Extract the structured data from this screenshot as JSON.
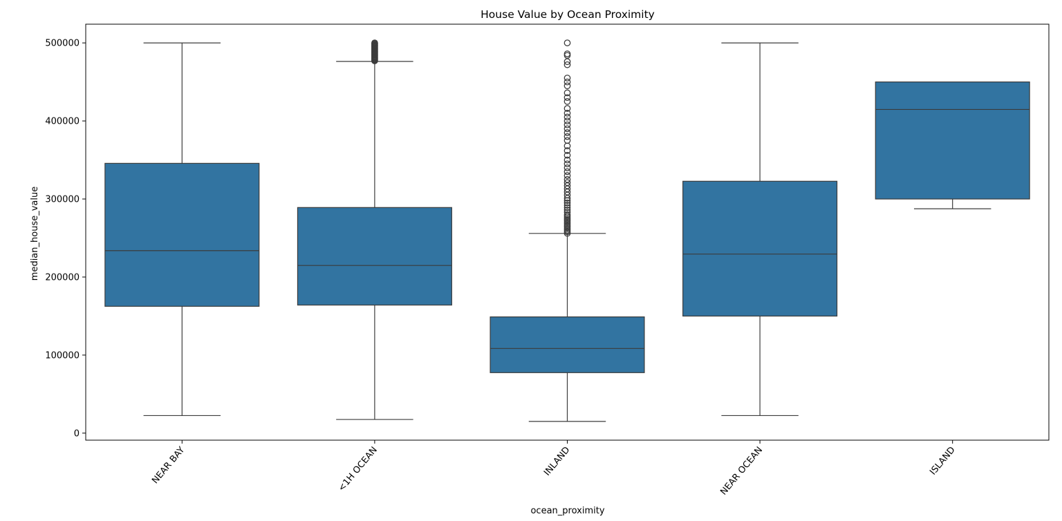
{
  "chart_data": {
    "type": "box",
    "title": "House Value by Ocean Proximity",
    "xlabel": "ocean_proximity",
    "ylabel": "median_house_value",
    "ylim": [
      -9000,
      524000
    ],
    "yticks": [
      0,
      100000,
      200000,
      300000,
      400000,
      500000
    ],
    "ytick_labels": [
      "0",
      "100000",
      "200000",
      "300000",
      "400000",
      "500000"
    ],
    "box_color": "#3274a1",
    "line_color": "#3b3b3b",
    "grid": false,
    "categories": [
      "NEAR BAY",
      "<1H OCEAN",
      "INLAND",
      "NEAR OCEAN",
      "ISLAND"
    ],
    "boxes": [
      {
        "category": "NEAR BAY",
        "whisker_low": 22500,
        "q1": 162500,
        "median": 233800,
        "q3": 345700,
        "whisker_high": 500001,
        "outliers": []
      },
      {
        "category": "<1H OCEAN",
        "whisker_low": 17500,
        "q1": 164100,
        "median": 214850,
        "q3": 289100,
        "whisker_high": 476300,
        "outliers": [
          477000,
          478000,
          479000,
          480000,
          481000,
          482000,
          483000,
          484000,
          485000,
          486000,
          487000,
          488000,
          489000,
          490000,
          491000,
          492000,
          493000,
          494000,
          495000,
          496000,
          497000,
          498000,
          499000,
          500001
        ]
      },
      {
        "category": "INLAND",
        "whisker_low": 14999,
        "q1": 77500,
        "median": 108500,
        "q3": 148950,
        "whisker_high": 255900,
        "outliers": [
          256000,
          258000,
          260000,
          262000,
          264000,
          266000,
          268000,
          270000,
          272000,
          274000,
          276000,
          278000,
          280000,
          283000,
          286000,
          289000,
          292000,
          295000,
          298000,
          301000,
          305000,
          309000,
          313000,
          317000,
          321000,
          325000,
          330000,
          335000,
          340000,
          345000,
          350000,
          356000,
          362000,
          368000,
          375000,
          380000,
          385000,
          390000,
          395000,
          400000,
          405000,
          410000,
          416000,
          425000,
          430000,
          436000,
          445000,
          450000,
          455000,
          472000,
          476000,
          484000,
          486000,
          500001
        ]
      },
      {
        "category": "NEAR OCEAN",
        "whisker_low": 22500,
        "q1": 150000,
        "median": 229450,
        "q3": 322750,
        "whisker_high": 500001,
        "outliers": []
      },
      {
        "category": "ISLAND",
        "whisker_low": 287500,
        "q1": 300000,
        "median": 414700,
        "q3": 450000,
        "whisker_high": 450000,
        "outliers": []
      }
    ]
  }
}
